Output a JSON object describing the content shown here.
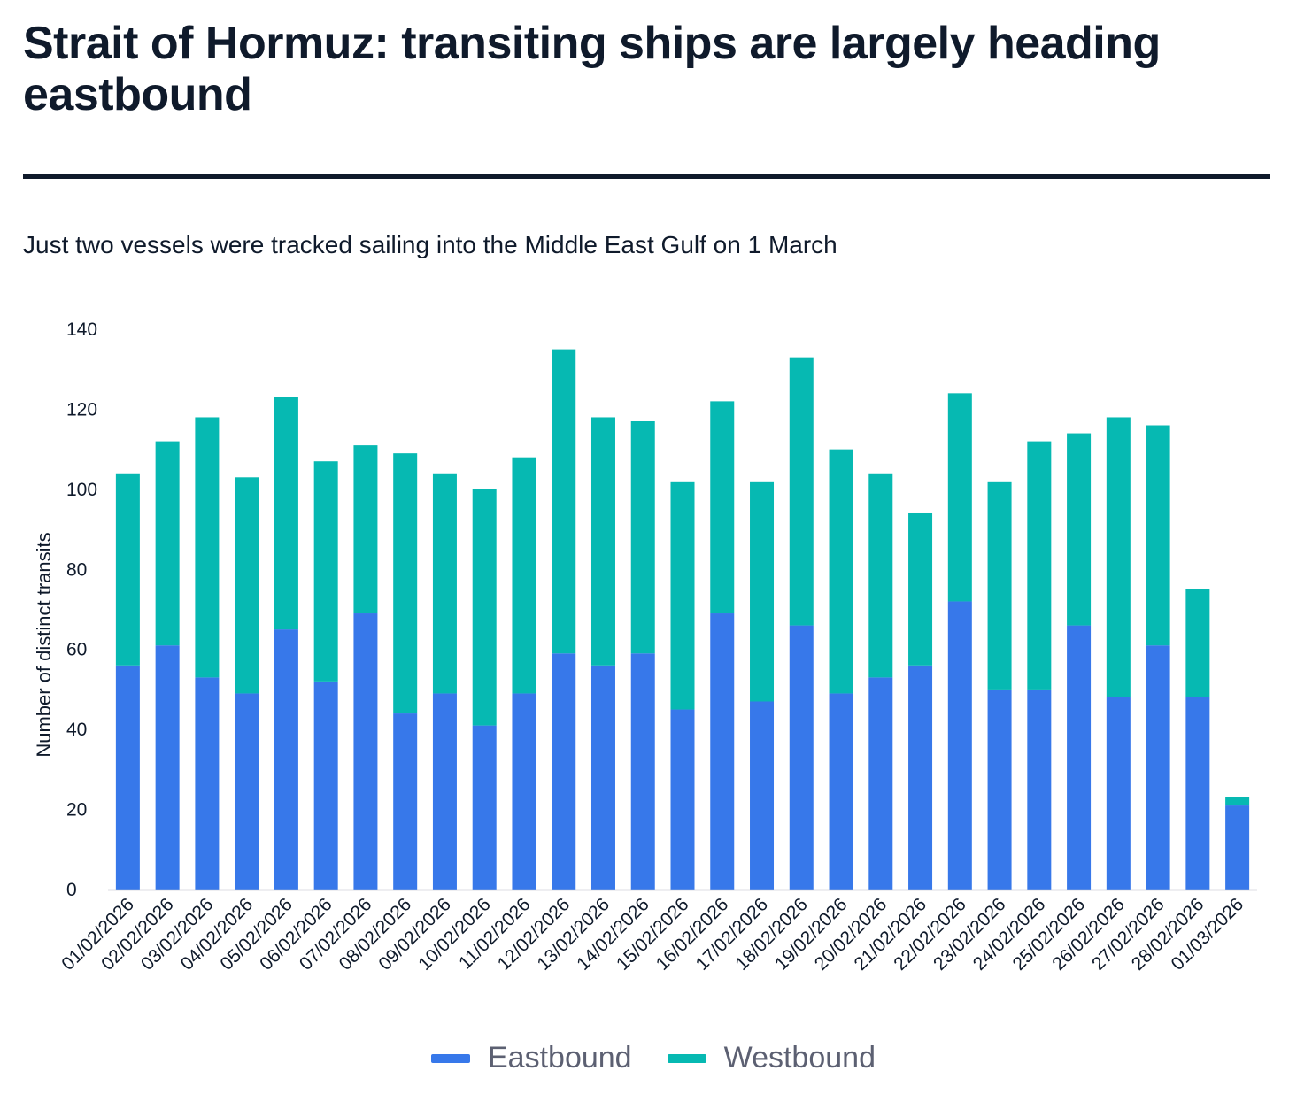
{
  "header": {
    "title": "Strait of Hormuz: transiting ships are largely heading eastbound",
    "subtitle": "Just two vessels were tracked sailing into the Middle East Gulf on 1 March"
  },
  "colors": {
    "eastbound": "#3778ea",
    "westbound": "#06b9b2",
    "text": "#0f1a2b",
    "axis": "#b9bec8",
    "legend_text": "#5c6072"
  },
  "legend": {
    "items": [
      {
        "label": "Eastbound",
        "color": "#3778ea"
      },
      {
        "label": "Westbound",
        "color": "#06b9b2"
      }
    ]
  },
  "chart_data": {
    "type": "bar",
    "stacked": true,
    "title": "",
    "xlabel": "",
    "ylabel": "Number of distinct transits",
    "ylim": [
      0,
      140
    ],
    "yticks": [
      0,
      20,
      40,
      60,
      80,
      100,
      120,
      140
    ],
    "grid": false,
    "legend_position": "bottom",
    "categories": [
      "01/02/2026",
      "02/02/2026",
      "03/02/2026",
      "04/02/2026",
      "05/02/2026",
      "06/02/2026",
      "07/02/2026",
      "08/02/2026",
      "09/02/2026",
      "10/02/2026",
      "11/02/2026",
      "12/02/2026",
      "13/02/2026",
      "14/02/2026",
      "15/02/2026",
      "16/02/2026",
      "17/02/2026",
      "18/02/2026",
      "19/02/2026",
      "20/02/2026",
      "21/02/2026",
      "22/02/2026",
      "23/02/2026",
      "24/02/2026",
      "25/02/2026",
      "26/02/2026",
      "27/02/2026",
      "28/02/2026",
      "01/03/2026"
    ],
    "series": [
      {
        "name": "Eastbound",
        "color": "#3778ea",
        "values": [
          56,
          61,
          53,
          49,
          65,
          52,
          69,
          44,
          49,
          41,
          49,
          59,
          56,
          59,
          45,
          69,
          47,
          66,
          49,
          53,
          56,
          72,
          50,
          50,
          66,
          48,
          61,
          48,
          21
        ]
      },
      {
        "name": "Westbound",
        "color": "#06b9b2",
        "values": [
          48,
          51,
          65,
          54,
          58,
          55,
          42,
          65,
          55,
          59,
          59,
          76,
          62,
          58,
          57,
          53,
          55,
          67,
          61,
          51,
          38,
          52,
          52,
          62,
          48,
          70,
          55,
          27,
          2
        ]
      }
    ]
  }
}
